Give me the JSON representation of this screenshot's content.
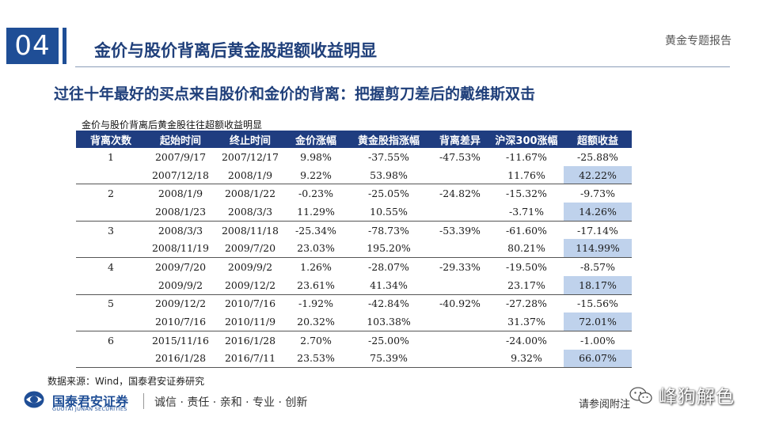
{
  "header": {
    "section_number": "04",
    "title": "金价与股价背离后黄金股超额收益明显",
    "report_tag": "黄金专题报告"
  },
  "subtitle": "过往十年最好的买点来自股价和金价的背离：把握剪刀差后的戴维斯双击",
  "table": {
    "title": "金价与股价背离后黄金股往往超额收益明显",
    "columns": [
      "背离次数",
      "起始时间",
      "终止时间",
      "金价涨幅",
      "黄金股指涨幅",
      "背离差异",
      "沪深300涨幅",
      "超额收益"
    ],
    "rows": [
      [
        "1",
        "2007/9/17",
        "2007/12/17",
        "9.98%",
        "-37.55%",
        "-47.53%",
        "-11.67%",
        "-25.88%"
      ],
      [
        "",
        "2007/12/18",
        "2008/1/9",
        "9.22%",
        "53.98%",
        "",
        "11.76%",
        "42.22%"
      ],
      [
        "2",
        "2008/1/9",
        "2008/1/22",
        "-0.23%",
        "-25.05%",
        "-24.82%",
        "-15.32%",
        "-9.73%"
      ],
      [
        "",
        "2008/1/23",
        "2008/3/3",
        "11.29%",
        "10.55%",
        "",
        "-3.71%",
        "14.26%"
      ],
      [
        "3",
        "2008/3/3",
        "2008/11/18",
        "-25.34%",
        "-78.73%",
        "-53.39%",
        "-61.60%",
        "-17.14%"
      ],
      [
        "",
        "2008/11/19",
        "2009/7/20",
        "23.03%",
        "195.20%",
        "",
        "80.21%",
        "114.99%"
      ],
      [
        "4",
        "2009/7/20",
        "2009/9/2",
        "1.26%",
        "-28.07%",
        "-29.33%",
        "-19.50%",
        "-8.57%"
      ],
      [
        "",
        "2009/9/2",
        "2009/12/2",
        "23.61%",
        "41.34%",
        "",
        "23.17%",
        "18.17%"
      ],
      [
        "5",
        "2009/12/2",
        "2010/7/16",
        "-1.92%",
        "-42.84%",
        "-40.92%",
        "-27.28%",
        "-15.56%"
      ],
      [
        "",
        "2010/7/16",
        "2010/11/9",
        "20.32%",
        "103.38%",
        "",
        "31.37%",
        "72.01%"
      ],
      [
        "6",
        "2015/11/16",
        "2016/1/28",
        "2.70%",
        "-25.00%",
        "",
        "-24.00%",
        "-1.00%"
      ],
      [
        "",
        "2016/1/28",
        "2016/7/11",
        "23.53%",
        "75.39%",
        "",
        "9.32%",
        "66.07%"
      ]
    ]
  },
  "source": "数据来源：Wind，国泰君安证券研究",
  "footer": {
    "logo_cn": "国泰君安证券",
    "logo_en": "GUOTAI JUNAN SECURITIES",
    "slogan": "诚信 · 责任 · 亲和 · 专业 · 创新",
    "disclaimer": "请参阅附注",
    "watermark": "峰狗解色"
  },
  "colors": {
    "brand_blue": "#1f4e96",
    "header_fill": "#1f3d80",
    "highlight": "#bfd2ec"
  }
}
